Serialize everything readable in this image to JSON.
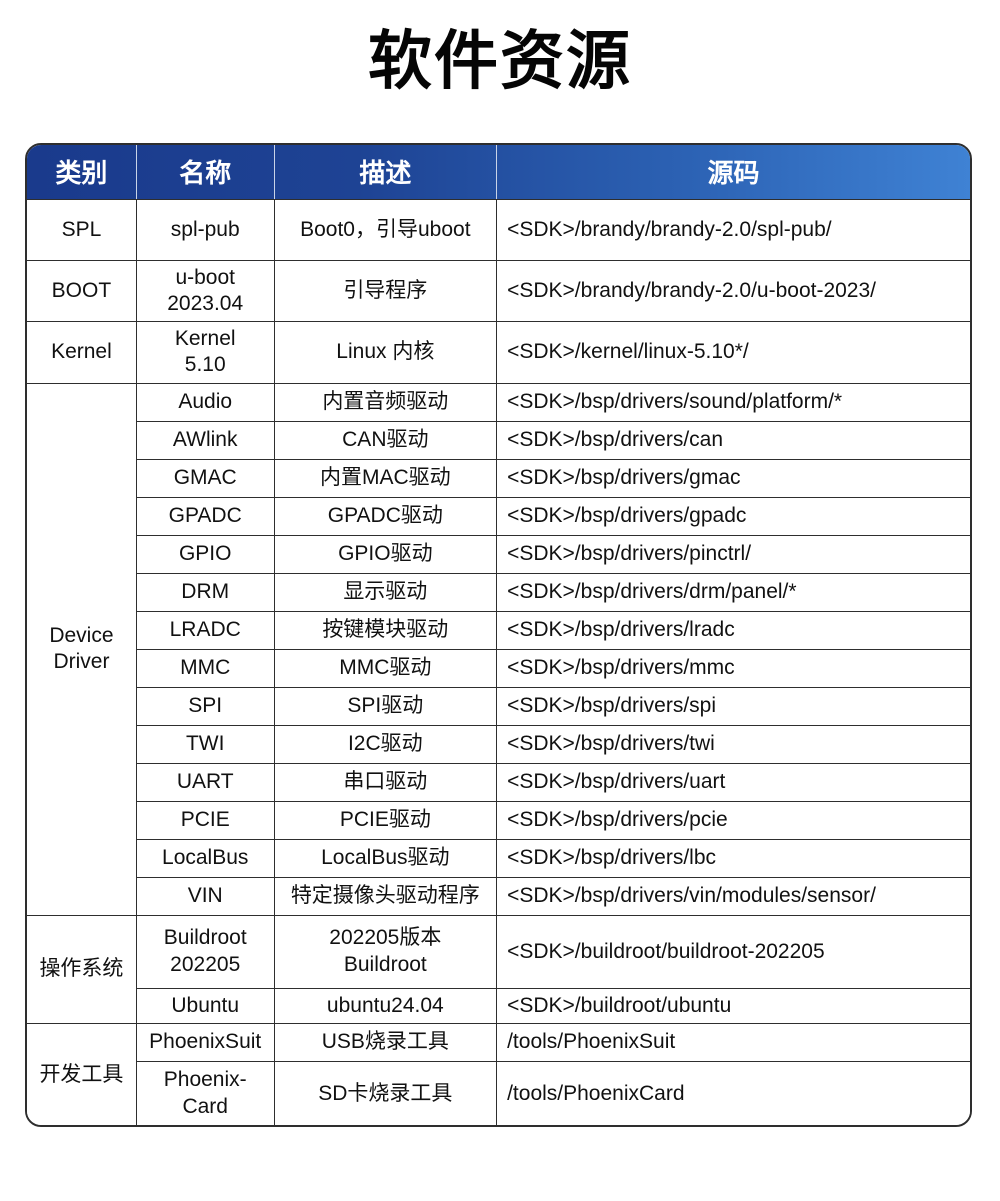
{
  "title": "软件资源",
  "colors": {
    "header_gradient_start": "#1a3a8c",
    "header_gradient_end": "#3f82d4",
    "header_text": "#ffffff",
    "body_text": "#111111",
    "border": "#2e2e2e",
    "background": "#ffffff"
  },
  "table": {
    "headers": [
      "类别",
      "名称",
      "描述",
      "源码"
    ],
    "groups": [
      {
        "category": "SPL",
        "rows": [
          {
            "name": "spl-pub",
            "desc": "Boot0，引导uboot",
            "src": "<SDK>/brandy/brandy-2.0/spl-pub/"
          }
        ]
      },
      {
        "category": "BOOT",
        "rows": [
          {
            "name": "u-boot\n2023.04",
            "desc": "引导程序",
            "src": "<SDK>/brandy/brandy-2.0/u-boot-2023/"
          }
        ]
      },
      {
        "category": "Kernel",
        "rows": [
          {
            "name": "Kernel\n5.10",
            "desc": "Linux 内核",
            "src": "<SDK>/kernel/linux-5.10*/"
          }
        ]
      },
      {
        "category": "Device\nDriver",
        "rows": [
          {
            "name": "Audio",
            "desc": "内置音频驱动",
            "src": "<SDK>/bsp/drivers/sound/platform/*"
          },
          {
            "name": "AWlink",
            "desc": "CAN驱动",
            "src": "<SDK>/bsp/drivers/can"
          },
          {
            "name": "GMAC",
            "desc": "内置MAC驱动",
            "src": "<SDK>/bsp/drivers/gmac"
          },
          {
            "name": "GPADC",
            "desc": "GPADC驱动",
            "src": "<SDK>/bsp/drivers/gpadc"
          },
          {
            "name": "GPIO",
            "desc": "GPIO驱动",
            "src": "<SDK>/bsp/drivers/pinctrl/"
          },
          {
            "name": "DRM",
            "desc": "显示驱动",
            "src": "<SDK>/bsp/drivers/drm/panel/*"
          },
          {
            "name": "LRADC",
            "desc": "按键模块驱动",
            "src": "<SDK>/bsp/drivers/lradc"
          },
          {
            "name": "MMC",
            "desc": "MMC驱动",
            "src": "<SDK>/bsp/drivers/mmc"
          },
          {
            "name": "SPI",
            "desc": "SPI驱动",
            "src": "<SDK>/bsp/drivers/spi"
          },
          {
            "name": "TWI",
            "desc": "I2C驱动",
            "src": "<SDK>/bsp/drivers/twi"
          },
          {
            "name": "UART",
            "desc": "串口驱动",
            "src": "<SDK>/bsp/drivers/uart"
          },
          {
            "name": "PCIE",
            "desc": "PCIE驱动",
            "src": "<SDK>/bsp/drivers/pcie"
          },
          {
            "name": "LocalBus",
            "desc": "LocalBus驱动",
            "src": "<SDK>/bsp/drivers/lbc"
          },
          {
            "name": "VIN",
            "desc": "特定摄像头驱动程序",
            "src": "<SDK>/bsp/drivers/vin/modules/sensor/"
          }
        ]
      },
      {
        "category": "操作系统",
        "rows": [
          {
            "name": "Buildroot\n202205",
            "desc": "202205版本\nBuildroot",
            "src": "<SDK>/buildroot/buildroot-202205"
          },
          {
            "name": "Ubuntu",
            "desc": "ubuntu24.04",
            "src": "<SDK>/buildroot/ubuntu"
          }
        ]
      },
      {
        "category": "开发工具",
        "rows": [
          {
            "name": "PhoenixSuit",
            "desc": "USB烧录工具",
            "src": "/tools/PhoenixSuit"
          },
          {
            "name": "Phoenix-\nCard",
            "desc": "SD卡烧录工具",
            "src": "/tools/PhoenixCard"
          }
        ]
      }
    ]
  }
}
